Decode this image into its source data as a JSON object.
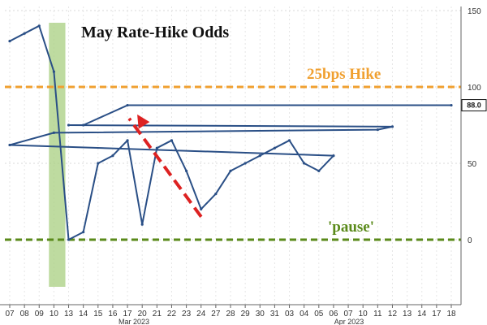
{
  "chart_data": {
    "type": "line",
    "title": "May Rate-Hike Odds",
    "xlabel": "",
    "ylabel": "",
    "ylim": [
      -35,
      150
    ],
    "yticks": [
      0,
      50,
      100,
      150
    ],
    "grid": true,
    "x_ticks": [
      "07",
      "08",
      "09",
      "10",
      "13",
      "14",
      "15",
      "16",
      "17",
      "20",
      "21",
      "22",
      "23",
      "24",
      "27",
      "28",
      "29",
      "30",
      "31",
      "03",
      "04",
      "05",
      "06",
      "07",
      "10",
      "11",
      "12",
      "13",
      "14",
      "17",
      "18"
    ],
    "month_labels": [
      "Mar 2023",
      "Apr 2023"
    ],
    "last_value": 88.0,
    "series": [
      {
        "x": [
          "07",
          "08",
          "09",
          "10",
          "13",
          "14",
          "15",
          "16",
          "17",
          "20",
          "21",
          "22",
          "23",
          "24",
          "27",
          "28",
          "29",
          "30",
          "31",
          "03",
          "04",
          "05",
          "06",
          "07",
          "10",
          "11",
          "12",
          "13",
          "14",
          "17",
          "18"
        ],
        "values": [
          130,
          135,
          140,
          110,
          0,
          5,
          50,
          55,
          65,
          10,
          60,
          65,
          45,
          20,
          30,
          45,
          50,
          55,
          60,
          65,
          50,
          45,
          55,
          62,
          70,
          72,
          74,
          75,
          75,
          88,
          88
        ]
      }
    ],
    "reference_lines": [
      {
        "value": 100,
        "label": "25bps Hike",
        "color": "#f0a030"
      },
      {
        "value": 0,
        "label": "'pause'",
        "color": "#5a8a1a"
      }
    ],
    "shaded_region": {
      "from": "09",
      "to": "13",
      "color": "#a8cf80"
    },
    "trend_arrow": {
      "from_x": "27",
      "from_y": 15,
      "to_x": "17",
      "to_y": 82,
      "color": "#dd2222"
    }
  }
}
